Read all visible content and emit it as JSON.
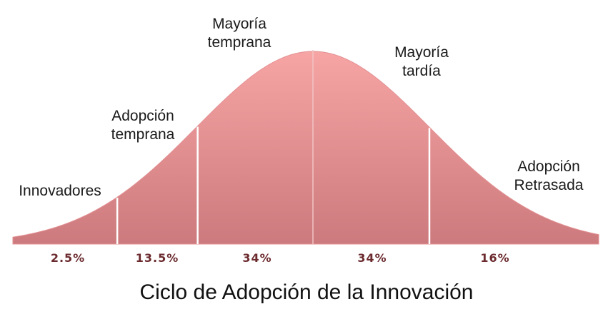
{
  "title": "Ciclo de Adopción de la Innovación",
  "segments": [
    {
      "label_1": "Innovadores",
      "label_2": "",
      "percent": "2.5%",
      "share": 2.5
    },
    {
      "label_1": "Adopción",
      "label_2": "temprana",
      "percent": "13.5%",
      "share": 13.5
    },
    {
      "label_1": "Mayoría",
      "label_2": "temprana",
      "percent": "34%",
      "share": 34
    },
    {
      "label_1": "Mayoría",
      "label_2": "tardía",
      "percent": "34%",
      "share": 34
    },
    {
      "label_1": "Adopción",
      "label_2": "Retrasada",
      "percent": "16%",
      "share": 16
    }
  ],
  "colors": {
    "curve_top": "#f7a4a4",
    "curve_bottom": "#cc7a7d",
    "divider": "#ffffff",
    "percent_text": "#6b2a2e"
  }
}
